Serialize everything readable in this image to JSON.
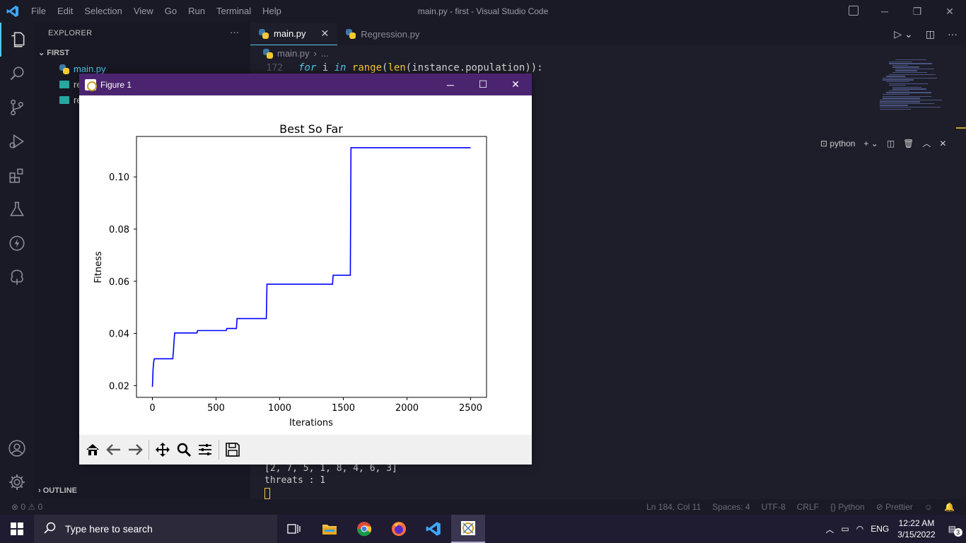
{
  "app": {
    "window_title": "main.py - first - Visual Studio Code",
    "menu": [
      "File",
      "Edit",
      "Selection",
      "View",
      "Go",
      "Run",
      "Terminal",
      "Help"
    ]
  },
  "sidebar": {
    "title": "EXPLORER",
    "more": "···",
    "folder": "FIRST",
    "files": [
      {
        "name": "main.py",
        "icon": "python-icon"
      },
      {
        "name": "re",
        "icon": "image-icon"
      },
      {
        "name": "re",
        "icon": "image-icon"
      }
    ],
    "outline": "OUTLINE"
  },
  "tabs": [
    {
      "label": "main.py",
      "close": "✕",
      "active": true
    },
    {
      "label": "Regression.py",
      "active": false
    }
  ],
  "breadcrumb": {
    "file": "main.py",
    "sep": "›",
    "rest": "..."
  },
  "code": {
    "line_number": "172",
    "kw1": "for",
    "t1": " i ",
    "kw2": "in",
    "t2": " ",
    "f1": "range",
    "t3": "(",
    "f2": "len",
    "t4": "(instance.population)):"
  },
  "panel": {
    "terminal_name": "python",
    "add": "+"
  },
  "terminal": {
    "line1": "[2, 7, 5, 1, 8, 4, 6, 3]",
    "line2": "threats : 1"
  },
  "statusbar": {
    "problems": "⊗ 0 ⚠ 0",
    "position": "Ln 184, Col 11",
    "spaces": "Spaces: 4",
    "encoding": "UTF-8",
    "eol": "CRLF",
    "language": "{} Python",
    "formatter": "⊘ Prettier"
  },
  "taskbar": {
    "search_placeholder": "Type here to search",
    "lang": "ENG",
    "time": "12:22 AM",
    "date": "3/15/2022",
    "notifications": "3"
  },
  "figure": {
    "window_title": "Figure 1",
    "colors": {
      "line": "#0000ff"
    }
  },
  "chart_data": {
    "type": "line",
    "title": "Best So Far",
    "xlabel": "Iterations",
    "ylabel": "Fitness",
    "xlim": [
      -125,
      2625
    ],
    "ylim": [
      0.0155,
      0.1155
    ],
    "xticks": [
      0,
      500,
      1000,
      1500,
      2000,
      2500
    ],
    "xtick_labels": [
      "0",
      "500",
      "1000",
      "1500",
      "2000",
      "2500"
    ],
    "yticks": [
      0.02,
      0.04,
      0.06,
      0.08,
      0.1
    ],
    "ytick_labels": [
      "0.02",
      "0.04",
      "0.06",
      "0.08",
      "0.10"
    ],
    "grid": false,
    "series": [
      {
        "x": [
          0,
          2,
          5,
          10,
          15,
          160,
          165,
          170,
          175,
          350,
          355,
          580,
          585,
          660,
          665,
          895,
          900,
          1415,
          1420,
          1555,
          1560,
          2500
        ],
        "y": [
          0.0195,
          0.022,
          0.026,
          0.029,
          0.0303,
          0.0303,
          0.033,
          0.037,
          0.0402,
          0.0402,
          0.0411,
          0.0411,
          0.0419,
          0.0419,
          0.0457,
          0.0457,
          0.0589,
          0.0589,
          0.0623,
          0.0623,
          0.1112,
          0.1112
        ]
      }
    ]
  }
}
